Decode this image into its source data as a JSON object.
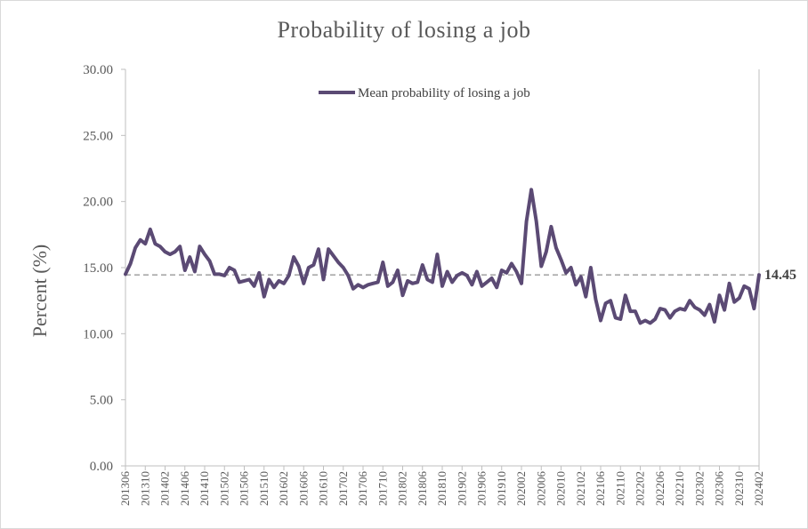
{
  "chart_data": {
    "type": "line",
    "title": "Probability  of losing  a job",
    "ylabel": "Percent (%)",
    "xlabel": "",
    "ylim": [
      0,
      30
    ],
    "y_ticks": [
      "0.00",
      "5.00",
      "10.00",
      "15.00",
      "20.00",
      "25.00",
      "30.00"
    ],
    "x_tick_labels": [
      "201306",
      "201310",
      "201402",
      "201406",
      "201410",
      "201502",
      "201506",
      "201510",
      "201602",
      "201606",
      "201610",
      "201702",
      "201706",
      "201710",
      "201802",
      "201806",
      "201810",
      "201902",
      "201906",
      "201910",
      "202002",
      "202006",
      "202010",
      "202102",
      "202106",
      "202110",
      "202202",
      "202206",
      "202210",
      "202302",
      "202306",
      "202310",
      "202402"
    ],
    "legend_position": "top-center",
    "grid": false,
    "colors": {
      "line": "#5b4a74",
      "reference": "#999999",
      "axis": "#bfbfbf"
    },
    "series": [
      {
        "name": "Mean probability of losing a job",
        "values": [
          14.5,
          15.3,
          16.5,
          17.1,
          16.8,
          17.9,
          16.8,
          16.6,
          16.2,
          16.0,
          16.2,
          16.6,
          14.8,
          15.8,
          14.7,
          16.6,
          16.0,
          15.5,
          14.5,
          14.5,
          14.4,
          15.0,
          14.8,
          13.9,
          14.0,
          14.1,
          13.6,
          14.6,
          12.8,
          14.1,
          13.5,
          14.0,
          13.8,
          14.4,
          15.8,
          15.1,
          13.8,
          15.0,
          15.2,
          16.4,
          14.1,
          16.4,
          15.9,
          15.4,
          15.0,
          14.4,
          13.4,
          13.7,
          13.5,
          13.7,
          13.8,
          13.9,
          15.4,
          13.6,
          13.9,
          14.8,
          12.9,
          14.0,
          13.8,
          13.9,
          15.2,
          14.1,
          13.9,
          16.0,
          13.6,
          14.7,
          13.9,
          14.4,
          14.6,
          14.4,
          13.7,
          14.7,
          13.6,
          13.9,
          14.2,
          13.5,
          14.8,
          14.6,
          15.3,
          14.7,
          13.8,
          18.5,
          20.9,
          18.5,
          15.1,
          16.2,
          18.1,
          16.5,
          15.6,
          14.6,
          15.0,
          13.7,
          14.3,
          12.8,
          15.0,
          12.6,
          11.0,
          12.3,
          12.5,
          11.2,
          11.1,
          12.9,
          11.7,
          11.7,
          10.8,
          11.0,
          10.8,
          11.1,
          11.9,
          11.8,
          11.2,
          11.7,
          11.9,
          11.8,
          12.5,
          12.0,
          11.8,
          11.4,
          12.2,
          10.9,
          12.9,
          11.8,
          13.8,
          12.4,
          12.7,
          13.6,
          13.4,
          11.9,
          14.45
        ]
      }
    ],
    "reference_line": {
      "value": 14.45,
      "label": "14.45"
    }
  }
}
